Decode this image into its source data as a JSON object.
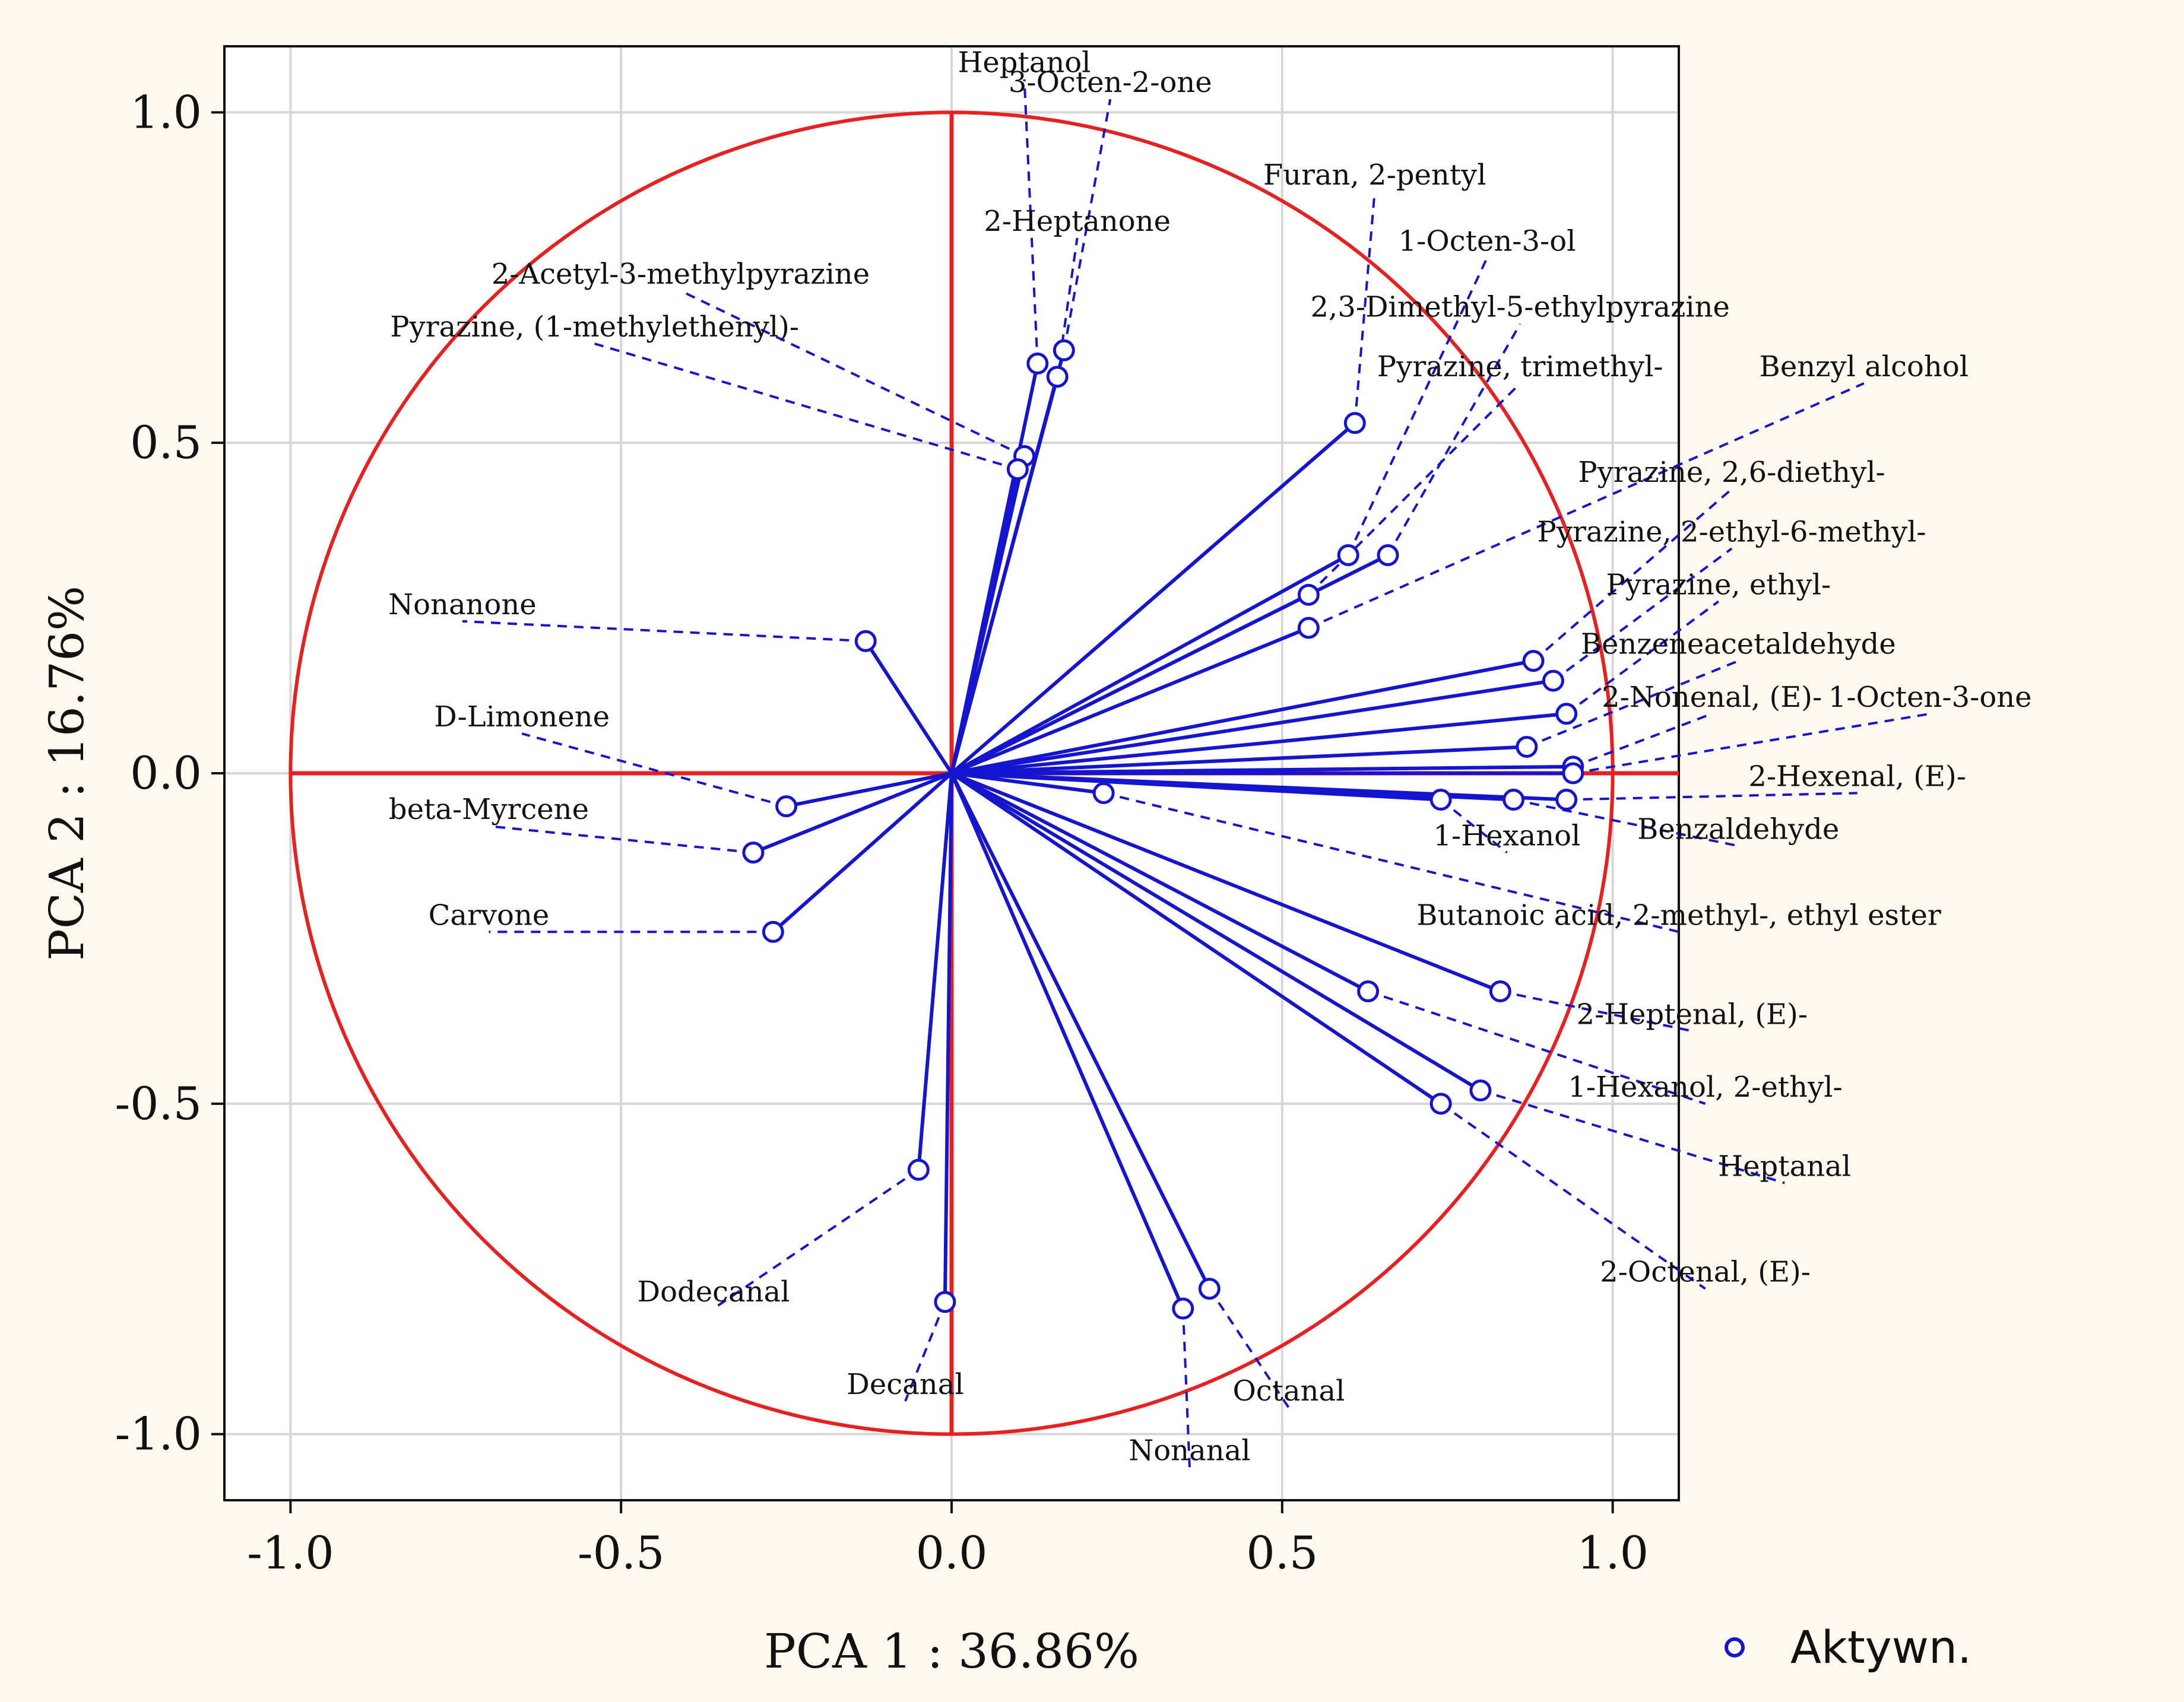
{
  "chart_data": {
    "type": "scatter",
    "subtype": "pca-correlation-circle",
    "xlabel": "PCA 1 : 36.86%",
    "ylabel": "PCA 2 : 16.76%",
    "xlim": [
      -1.1,
      1.1
    ],
    "ylim": [
      -1.1,
      1.1
    ],
    "xticks": [
      "-1.0",
      "-0.5",
      "0.0",
      "0.5",
      "1.0"
    ],
    "yticks": [
      "-1.0",
      "-0.5",
      "0.0",
      "0.5",
      "1.0"
    ],
    "xtick_values": [
      -1.0,
      -0.5,
      0.0,
      0.5,
      1.0
    ],
    "ytick_values": [
      -1.0,
      -0.5,
      0.0,
      0.5,
      1.0
    ],
    "grid": true,
    "unit_circle": true,
    "legend": {
      "label": "Aktywn.",
      "position": "bottom-right"
    },
    "colors": {
      "circle": "#e8201f",
      "axes": "#e8201f",
      "vectors": "#1515d0",
      "grid": "#d6d6d6",
      "background": "#fdf9ef"
    },
    "series": [
      {
        "name": "Heptanol",
        "x": 0.13,
        "y": 0.62,
        "label_anchor": [
          0.11,
          1.05
        ]
      },
      {
        "name": "3-Octen-2-one",
        "x": 0.17,
        "y": 0.64,
        "label_anchor": [
          0.24,
          1.02
        ]
      },
      {
        "name": "2-Heptanone",
        "x": 0.16,
        "y": 0.6,
        "label_anchor": [
          0.19,
          0.81
        ]
      },
      {
        "name": "2-Acetyl-3-methylpyrazine",
        "x": 0.11,
        "y": 0.48,
        "label_anchor": [
          -0.41,
          0.73
        ]
      },
      {
        "name": "Pyrazine, (1-methylethenyl)-",
        "x": 0.1,
        "y": 0.46,
        "label_anchor": [
          -0.54,
          0.65
        ]
      },
      {
        "name": "Furan, 2-pentyl",
        "x": 0.61,
        "y": 0.53,
        "label_anchor": [
          0.64,
          0.88
        ]
      },
      {
        "name": "1-Octen-3-ol",
        "x": 0.6,
        "y": 0.33,
        "label_anchor": [
          0.81,
          0.78
        ]
      },
      {
        "name": "2,3-Dimethyl-5-ethylpyrazine",
        "x": 0.66,
        "y": 0.33,
        "label_anchor": [
          0.86,
          0.68
        ]
      },
      {
        "name": "Pyrazine, trimethyl-",
        "x": 0.54,
        "y": 0.27,
        "label_anchor": [
          0.86,
          0.59
        ]
      },
      {
        "name": "Benzyl alcohol",
        "x": 0.54,
        "y": 0.22,
        "label_anchor": [
          1.38,
          0.59
        ]
      },
      {
        "name": "Pyrazine, 2,6-diethyl-",
        "x": 0.88,
        "y": 0.17,
        "label_anchor": [
          1.18,
          0.43
        ]
      },
      {
        "name": "Pyrazine, 2-ethyl-6-methyl-",
        "x": 0.91,
        "y": 0.14,
        "label_anchor": [
          1.18,
          0.34
        ]
      },
      {
        "name": "Pyrazine, ethyl-",
        "x": 0.93,
        "y": 0.09,
        "label_anchor": [
          1.16,
          0.26
        ]
      },
      {
        "name": "Benzeneacetaldehyde",
        "x": 0.87,
        "y": 0.04,
        "label_anchor": [
          1.19,
          0.17
        ]
      },
      {
        "name": "2-Nonenal, (E)-",
        "x": 0.94,
        "y": 0.01,
        "label_anchor": [
          1.15,
          0.09
        ]
      },
      {
        "name": "1-Octen-3-one",
        "x": 0.94,
        "y": 0.0,
        "label_anchor": [
          1.48,
          0.09
        ]
      },
      {
        "name": "2-Hexenal, (E)-",
        "x": 0.93,
        "y": -0.04,
        "label_anchor": [
          1.37,
          -0.03
        ]
      },
      {
        "name": "1-Hexanol",
        "x": 0.74,
        "y": -0.04,
        "label_anchor": [
          0.84,
          -0.12
        ]
      },
      {
        "name": "Benzaldehyde",
        "x": 0.85,
        "y": -0.04,
        "label_anchor": [
          1.19,
          -0.11
        ]
      },
      {
        "name": "Butanoic acid, 2-methyl-, ethyl ester",
        "x": 0.23,
        "y": -0.03,
        "label_anchor": [
          1.1,
          -0.24
        ]
      },
      {
        "name": "2-Heptenal, (E)-",
        "x": 0.83,
        "y": -0.33,
        "label_anchor": [
          1.12,
          -0.39
        ]
      },
      {
        "name": "1-Hexanol, 2-ethyl-",
        "x": 0.63,
        "y": -0.33,
        "label_anchor": [
          1.14,
          -0.5
        ]
      },
      {
        "name": "Heptanal",
        "x": 0.8,
        "y": -0.48,
        "label_anchor": [
          1.26,
          -0.62
        ]
      },
      {
        "name": "2-Octenal, (E)-",
        "x": 0.74,
        "y": -0.5,
        "label_anchor": [
          1.14,
          -0.78
        ]
      },
      {
        "name": "Octanal",
        "x": 0.39,
        "y": -0.78,
        "label_anchor": [
          0.51,
          -0.96
        ]
      },
      {
        "name": "Nonanal",
        "x": 0.35,
        "y": -0.81,
        "label_anchor": [
          0.36,
          -1.05
        ]
      },
      {
        "name": "Nonanone",
        "x": -0.13,
        "y": 0.2,
        "label_anchor": [
          -0.74,
          0.23
        ]
      },
      {
        "name": "D-Limonene",
        "x": -0.25,
        "y": -0.05,
        "label_anchor": [
          -0.65,
          0.06
        ]
      },
      {
        "name": "beta-Myrcene",
        "x": -0.3,
        "y": -0.12,
        "label_anchor": [
          -0.7,
          -0.08
        ]
      },
      {
        "name": "Carvone",
        "x": -0.27,
        "y": -0.24,
        "label_anchor": [
          -0.7,
          -0.24
        ]
      },
      {
        "name": "Dodecanal",
        "x": -0.05,
        "y": -0.6,
        "label_anchor": [
          -0.36,
          -0.81
        ]
      },
      {
        "name": "Decanal",
        "x": -0.01,
        "y": -0.8,
        "label_anchor": [
          -0.07,
          -0.95
        ]
      }
    ]
  }
}
